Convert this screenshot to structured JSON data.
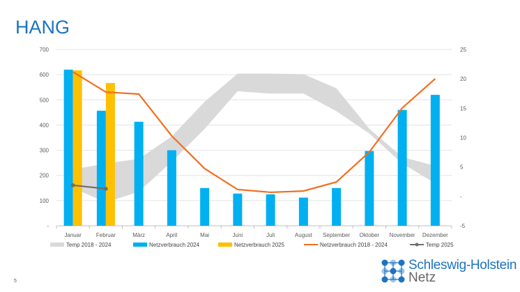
{
  "title": "HANG",
  "page_number": "5",
  "logo": {
    "line1": "Schleswig-Holstein",
    "line2": "Netz"
  },
  "colors": {
    "bar2024": "#00b0f0",
    "bar2025": "#ffc000",
    "line": "#f26f21",
    "temp2025": "#6d6d6d",
    "band": "#d9d9d9",
    "title": "#1d73c2"
  },
  "chart_data": {
    "type": "bar",
    "title": "",
    "categories": [
      "Januar",
      "Februar",
      "März",
      "April",
      "Mai",
      "Juni",
      "Juli",
      "August",
      "September",
      "Oktober",
      "November",
      "Dezember"
    ],
    "y_left": {
      "range": [
        0,
        700
      ],
      "ticks": [
        0,
        100,
        200,
        300,
        400,
        500,
        600,
        700
      ],
      "tick_labels": [
        "-",
        "100",
        "200",
        "300",
        "400",
        "500",
        "600",
        "700"
      ]
    },
    "y_right": {
      "range": [
        -5,
        25
      ],
      "ticks": [
        -5,
        0,
        5,
        10,
        15,
        20,
        25
      ],
      "tick_labels": [
        "-5",
        "-",
        "5",
        "10",
        "15",
        "20",
        "25"
      ]
    },
    "grid": true,
    "legend_position": "bottom",
    "series": [
      {
        "name": "Temp 2018 - 2024",
        "type": "band",
        "axis": "right",
        "low": [
          1.4,
          -1,
          0.8,
          5.9,
          11.5,
          17.9,
          17.5,
          17.5,
          14.5,
          10.7,
          5.6,
          2.2
        ],
        "high": [
          4.6,
          5.6,
          6.4,
          10.2,
          16.1,
          20.9,
          20.9,
          20.8,
          18.4,
          11.5,
          6.7,
          5.2
        ]
      },
      {
        "name": "Netzverbrauch 2024",
        "type": "bar",
        "axis": "left",
        "values": [
          620,
          457,
          413,
          300,
          150,
          128,
          125,
          112,
          150,
          297,
          460,
          520
        ]
      },
      {
        "name": "Netzverbrauch 2025",
        "type": "bar",
        "axis": "left",
        "values": [
          617,
          567,
          null,
          null,
          null,
          null,
          null,
          null,
          null,
          null,
          null,
          null
        ]
      },
      {
        "name": "Netzverbrauch 2018 - 2024",
        "type": "line",
        "axis": "left",
        "values": [
          611,
          531,
          523,
          357,
          227,
          144,
          133,
          138,
          174,
          293,
          468,
          584
        ]
      },
      {
        "name": "Temp 2025",
        "type": "line",
        "axis": "right",
        "values": [
          1.9,
          1.3,
          null,
          null,
          null,
          null,
          null,
          null,
          null,
          null,
          null,
          null
        ]
      }
    ]
  }
}
